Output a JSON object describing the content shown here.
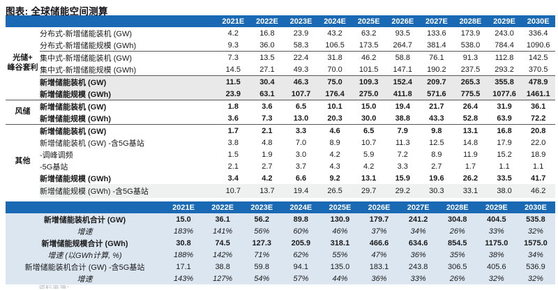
{
  "title": "图表: 全球储能空间测算",
  "colors": {
    "header_blue": "#1a69b4",
    "summary_body_bg": "#dce6f1",
    "total_row_gray": "#e9e9e9",
    "shaded_row": "#eff0f0",
    "separator_line": "#555555"
  },
  "years": [
    "2021E",
    "2022E",
    "2023E",
    "2024E",
    "2025E",
    "2026E",
    "2027E",
    "2028E",
    "2029E",
    "2030E"
  ],
  "main_table": {
    "groups": [
      {
        "label": "光储+峰谷套利",
        "label_lines": [
          "光储+",
          "峰谷套利"
        ],
        "rows": [
          {
            "label": "分布式-新增储能装机 (GW)",
            "values": [
              "4.2",
              "16.8",
              "23.9",
              "43.2",
              "63.2",
              "93.5",
              "133.6",
              "173.9",
              "243.0",
              "336.4"
            ]
          },
          {
            "label": "分布式-新增储能规模 (GWh)",
            "sep": true,
            "values": [
              "9.3",
              "36.0",
              "58.3",
              "106.5",
              "173.5",
              "264.7",
              "381.4",
              "538.0",
              "784.4",
              "1090.6"
            ]
          },
          {
            "label": "集中式-新增储能装机 (GW)",
            "values": [
              "7.3",
              "13.5",
              "22.4",
              "31.8",
              "46.2",
              "58.8",
              "76.1",
              "91.3",
              "112.8",
              "142.5"
            ]
          },
          {
            "label": "集中式-新增储能规模 (GWh)",
            "sep": true,
            "values": [
              "14.5",
              "27.1",
              "49.3",
              "70.0",
              "101.5",
              "147.1",
              "190.2",
              "237.5",
              "293.2",
              "370.5"
            ]
          },
          {
            "label": "新增储能装机 (GW)",
            "bold": true,
            "bg": "gray",
            "values": [
              "11.5",
              "30.4",
              "46.3",
              "75.0",
              "109.3",
              "152.4",
              "209.7",
              "265.3",
              "355.8",
              "478.9"
            ]
          },
          {
            "label": "新增储能规模 (GWh)",
            "bold": true,
            "bg": "gray",
            "sep": true,
            "values": [
              "23.9",
              "63.1",
              "107.7",
              "176.4",
              "275.0",
              "411.8",
              "571.6",
              "775.5",
              "1077.6",
              "1461.1"
            ]
          }
        ]
      },
      {
        "label": "风储",
        "label_lines": [
          "风储"
        ],
        "rows": [
          {
            "label": "新增储能装机 (GW)",
            "bold": true,
            "values": [
              "1.8",
              "3.6",
              "6.5",
              "10.1",
              "15.0",
              "19.4",
              "21.7",
              "26.4",
              "31.9",
              "36.1"
            ]
          },
          {
            "label": "新增储能规模 (GWh)",
            "bold": true,
            "sep": true,
            "values": [
              "3.6",
              "7.3",
              "13.0",
              "20.3",
              "30.0",
              "38.8",
              "43.3",
              "52.8",
              "63.9",
              "72.2"
            ]
          }
        ]
      },
      {
        "label": "其他",
        "label_lines": [
          "其他"
        ],
        "rows": [
          {
            "label": "新增储能装机 (GW)",
            "bold": true,
            "values": [
              "1.7",
              "2.1",
              "3.3",
              "4.6",
              "6.5",
              "7.9",
              "9.8",
              "13.1",
              "16.8",
              "20.8"
            ]
          },
          {
            "label": "新增储能装机 (GW) -含5G基站",
            "values": [
              "3.8",
              "4.8",
              "7.0",
              "8.9",
              "10.7",
              "11.3",
              "12.5",
              "14.8",
              "17.9",
              "22.0"
            ]
          },
          {
            "label": "-调峰调频",
            "values": [
              "1.5",
              "1.9",
              "3.0",
              "4.2",
              "5.9",
              "7.2",
              "8.9",
              "11.9",
              "15.2",
              "18.9"
            ]
          },
          {
            "label": "-5G基站",
            "values": [
              "2.1",
              "2.7",
              "3.7",
              "4.3",
              "4.2",
              "3.3",
              "2.7",
              "1.7",
              "1.1",
              "1.1"
            ]
          },
          {
            "label": "新增储能规模 (GWh)",
            "bold": true,
            "values": [
              "3.4",
              "4.2",
              "6.6",
              "9.2",
              "13.1",
              "15.9",
              "19.6",
              "26.2",
              "33.5",
              "41.7"
            ]
          },
          {
            "label": "新增储能规模 (GWh) -含5G基站",
            "bg": "shade",
            "values": [
              "10.7",
              "13.7",
              "19.4",
              "26.5",
              "29.7",
              "29.2",
              "30.3",
              "33.1",
              "38.0",
              "46.2"
            ]
          }
        ]
      }
    ]
  },
  "summary_table": {
    "rows": [
      {
        "label": "新增储能装机合计 (GW)",
        "style": "bold",
        "values": [
          "15.0",
          "36.1",
          "56.2",
          "89.8",
          "130.9",
          "179.7",
          "241.2",
          "304.8",
          "404.5",
          "535.8"
        ]
      },
      {
        "label": "增速",
        "style": "italic",
        "values": [
          "183%",
          "141%",
          "56%",
          "60%",
          "46%",
          "37%",
          "34%",
          "26%",
          "33%",
          "32%"
        ]
      },
      {
        "label": "新增储能规模合计 (GWh)",
        "style": "bold",
        "values": [
          "30.8",
          "74.5",
          "127.3",
          "205.9",
          "318.1",
          "466.6",
          "634.6",
          "854.5",
          "1175.0",
          "1575.0"
        ]
      },
      {
        "label": "增速 (以GWh计算, %)",
        "style": "italic",
        "values": [
          "188%",
          "142%",
          "71%",
          "62%",
          "55%",
          "47%",
          "36%",
          "35%",
          "38%",
          "34%"
        ]
      },
      {
        "label": "新增储能装机合计 (GW) -含5G基站",
        "style": "normal",
        "values": [
          "17.1",
          "38.8",
          "59.8",
          "94.1",
          "135.0",
          "183.1",
          "243.8",
          "306.5",
          "405.6",
          "536.9"
        ]
      },
      {
        "label": "增速",
        "style": "italic",
        "values": [
          "143%",
          "127%",
          "54%",
          "57%",
          "44%",
          "36%",
          "33%",
          "26%",
          "32%",
          "32%"
        ]
      }
    ]
  },
  "footer_partial": "资料来源："
}
